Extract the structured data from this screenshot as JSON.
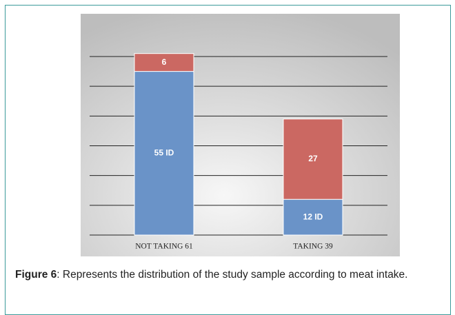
{
  "chart_data": {
    "type": "stacked_bar",
    "categories": [
      "NOT TAKING 61",
      "TAKING 39"
    ],
    "series": [
      {
        "color": "#6a93c8",
        "values": [
          55,
          12
        ],
        "value_labels": [
          "55 ID",
          "12 ID"
        ]
      },
      {
        "color": "#cb6862",
        "values": [
          6,
          27
        ]
      }
    ],
    "ylim": [
      0,
      60
    ],
    "yticks": [
      0,
      10,
      20,
      30,
      40,
      50,
      60
    ],
    "grid": true
  },
  "caption": {
    "label": "Figure 6",
    "text": ": Represents the distribution of the study sample according to meat intake."
  }
}
